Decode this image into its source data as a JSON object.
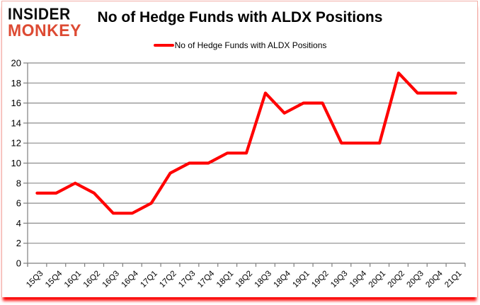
{
  "brand": {
    "line1": "INSIDER",
    "line2": "MONKEY"
  },
  "header": {
    "title": "No of Hedge Funds with ALDX Positions"
  },
  "legend": {
    "label": "No of Hedge Funds with ALDX Positions"
  },
  "colors": {
    "brand_black": "#0d0d0d",
    "brand_red": "#dd4a33",
    "series_red": "#ff0000",
    "grid": "#8c8c8c",
    "axis": "#7f7f7f",
    "text": "#000000",
    "frame_glow": "#fb0404"
  },
  "chart_data": {
    "type": "line",
    "title": "No of Hedge Funds with ALDX Positions",
    "categories": [
      "15Q3",
      "15Q4",
      "16Q1",
      "16Q2",
      "16Q3",
      "16Q4",
      "17Q1",
      "17Q2",
      "17Q3",
      "17Q4",
      "18Q1",
      "18Q2",
      "18Q3",
      "18Q4",
      "19Q1",
      "19Q2",
      "19Q3",
      "19Q4",
      "20Q1",
      "20Q2",
      "20Q3",
      "20Q4",
      "21Q1"
    ],
    "series": [
      {
        "name": "No of Hedge Funds with ALDX Positions",
        "color": "#ff0000",
        "values": [
          7,
          7,
          8,
          7,
          5,
          5,
          6,
          9,
          10,
          10,
          11,
          11,
          17,
          15,
          16,
          16,
          12,
          12,
          12,
          19,
          17,
          17,
          17
        ]
      }
    ],
    "xlabel": "",
    "ylabel": "",
    "ylim": [
      0,
      20
    ],
    "yticks": [
      0,
      2,
      4,
      6,
      8,
      10,
      12,
      14,
      16,
      18,
      20
    ],
    "grid": true,
    "legend_position": "top-center",
    "x_label_rotation": -45
  }
}
